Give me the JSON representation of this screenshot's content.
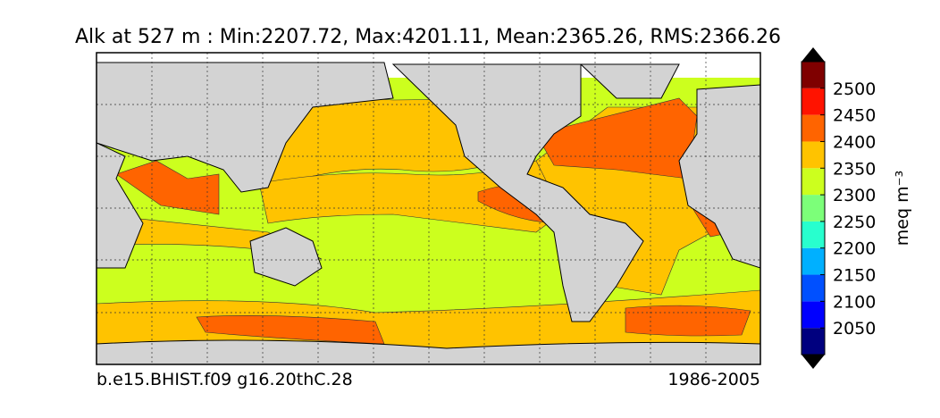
{
  "title": "Alk at 527 m : Min:2207.72, Max:4201.11, Mean:2365.26, RMS:2366.26",
  "footer_left": "b.e15.BHIST.f09 g16.20thC.28",
  "footer_right": "1986-2005",
  "colorbar": {
    "label": "meq m⁻³",
    "levels": [
      2000,
      2050,
      2100,
      2150,
      2200,
      2250,
      2300,
      2350,
      2400,
      2450,
      2500,
      2550
    ],
    "colors": [
      "#00007f",
      "#0000ff",
      "#0050ff",
      "#00b0ff",
      "#28ffce",
      "#7cff79",
      "#ccff1e",
      "#ffc300",
      "#ff6400",
      "#ff1300",
      "#7f0000"
    ],
    "ticks": [
      2050,
      2100,
      2150,
      2200,
      2250,
      2300,
      2350,
      2400,
      2450,
      2500
    ]
  }
}
